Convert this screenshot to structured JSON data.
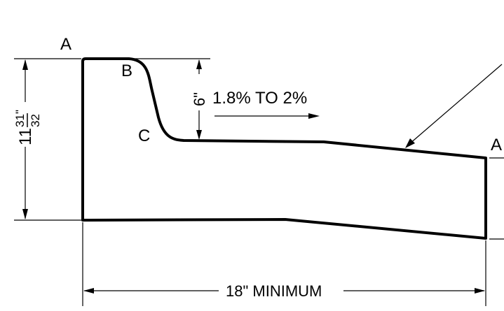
{
  "labels": {
    "point_a": "A",
    "point_b": "B",
    "point_c": "C",
    "point_a_right": "A"
  },
  "dimensions": {
    "height_whole": "11",
    "height_numerator": "31",
    "height_denominator": "32",
    "height_inch_mark": "\"",
    "curb_depth": "6\"",
    "width": "18\" MINIMUM"
  },
  "annotations": {
    "slope": "1.8% TO 2%"
  }
}
